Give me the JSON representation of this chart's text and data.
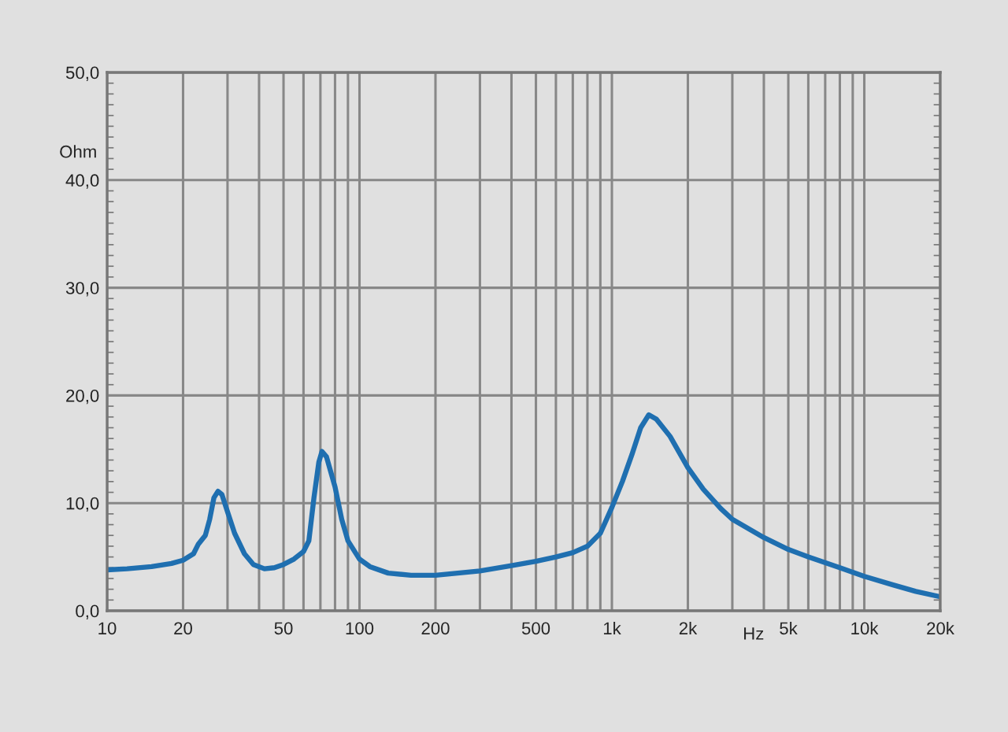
{
  "chart_data": {
    "type": "line",
    "xlabel": "Hz",
    "ylabel": "Ohm",
    "log": "x",
    "grid": true,
    "marker": "none",
    "line_style": "solid",
    "x": [
      10,
      12,
      15,
      18,
      20,
      22,
      23,
      24.5,
      25.5,
      26.5,
      27.5,
      28.5,
      30,
      32,
      35,
      38,
      42,
      46,
      50,
      55,
      60,
      63,
      66,
      69,
      71,
      74,
      80,
      85,
      90,
      100,
      110,
      130,
      160,
      200,
      300,
      400,
      500,
      600,
      700,
      800,
      900,
      1000,
      1100,
      1200,
      1300,
      1400,
      1500,
      1700,
      2000,
      2300,
      2700,
      3000,
      4000,
      5000,
      6000,
      8000,
      10000,
      13000,
      16000,
      20000
    ],
    "series": [
      {
        "color": "#1f6fb0",
        "values": [
          3.8,
          3.9,
          4.1,
          4.4,
          4.7,
          5.3,
          6.2,
          7.0,
          8.5,
          10.5,
          11.1,
          10.8,
          9.2,
          7.2,
          5.3,
          4.3,
          3.9,
          4.0,
          4.3,
          4.8,
          5.5,
          6.5,
          10.5,
          13.8,
          14.8,
          14.3,
          11.5,
          8.5,
          6.5,
          4.8,
          4.1,
          3.5,
          3.3,
          3.3,
          3.7,
          4.2,
          4.6,
          5.0,
          5.4,
          6.0,
          7.2,
          9.6,
          12.0,
          14.5,
          17.0,
          18.2,
          17.8,
          16.2,
          13.3,
          11.3,
          9.5,
          8.5,
          6.8,
          5.7,
          5.0,
          4.0,
          3.2,
          2.4,
          1.8,
          1.3
        ]
      }
    ],
    "xlim": [
      10,
      20000
    ],
    "xticks": [
      10,
      20,
      {
        "value": 30,
        "label": null
      },
      {
        "value": 40,
        "label": null
      },
      50,
      {
        "value": 60,
        "label": null
      },
      {
        "value": 70,
        "label": null
      },
      {
        "value": 80,
        "label": null
      },
      {
        "value": 90,
        "label": null
      },
      100,
      200,
      {
        "value": 300,
        "label": null
      },
      {
        "value": 400,
        "label": null
      },
      500,
      {
        "value": 600,
        "label": null
      },
      {
        "value": 700,
        "label": null
      },
      {
        "value": 800,
        "label": null
      },
      {
        "value": 900,
        "label": null
      },
      {
        "value": 1000,
        "label": "1k"
      },
      {
        "value": 2000,
        "label": "2k"
      },
      {
        "value": 3000,
        "label": null
      },
      {
        "value": 4000,
        "label": null
      },
      {
        "value": 5000,
        "label": "5k"
      },
      {
        "value": 6000,
        "label": null
      },
      {
        "value": 7000,
        "label": null
      },
      {
        "value": 8000,
        "label": null
      },
      {
        "value": 9000,
        "label": null
      },
      {
        "value": 10000,
        "label": "10k"
      },
      {
        "value": 20000,
        "label": "20k"
      }
    ],
    "ylim": [
      0,
      50
    ],
    "yticks": [
      {
        "value": 0,
        "label": "0,0"
      },
      {
        "value": 10,
        "label": "10,0"
      },
      {
        "value": 20,
        "label": "20,0"
      },
      {
        "value": 30,
        "label": "30,0"
      },
      {
        "value": 40,
        "label": "40,0"
      },
      {
        "value": 50,
        "label": "50,0"
      }
    ]
  }
}
